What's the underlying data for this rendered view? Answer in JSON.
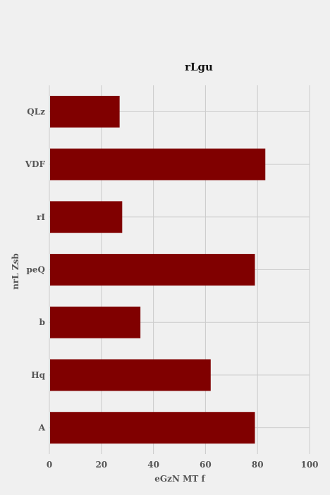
{
  "chart_data": {
    "type": "bar",
    "orientation": "horizontal",
    "title": "rLgu",
    "xlabel": "eGzN MT f",
    "ylabel": "nrL  Zsb",
    "categories": [
      "QLz",
      "VDF",
      "rI",
      "peQ",
      "b",
      "Hq",
      "A"
    ],
    "values": [
      27,
      83,
      28,
      79,
      35,
      62,
      79
    ],
    "xlim": [
      0,
      100
    ],
    "xticks": [
      0,
      20,
      40,
      60,
      80,
      100
    ],
    "grid": true,
    "bar_color": "#800000",
    "background_color": "#f0f0f0",
    "grid_color": "#cbcbcb"
  }
}
